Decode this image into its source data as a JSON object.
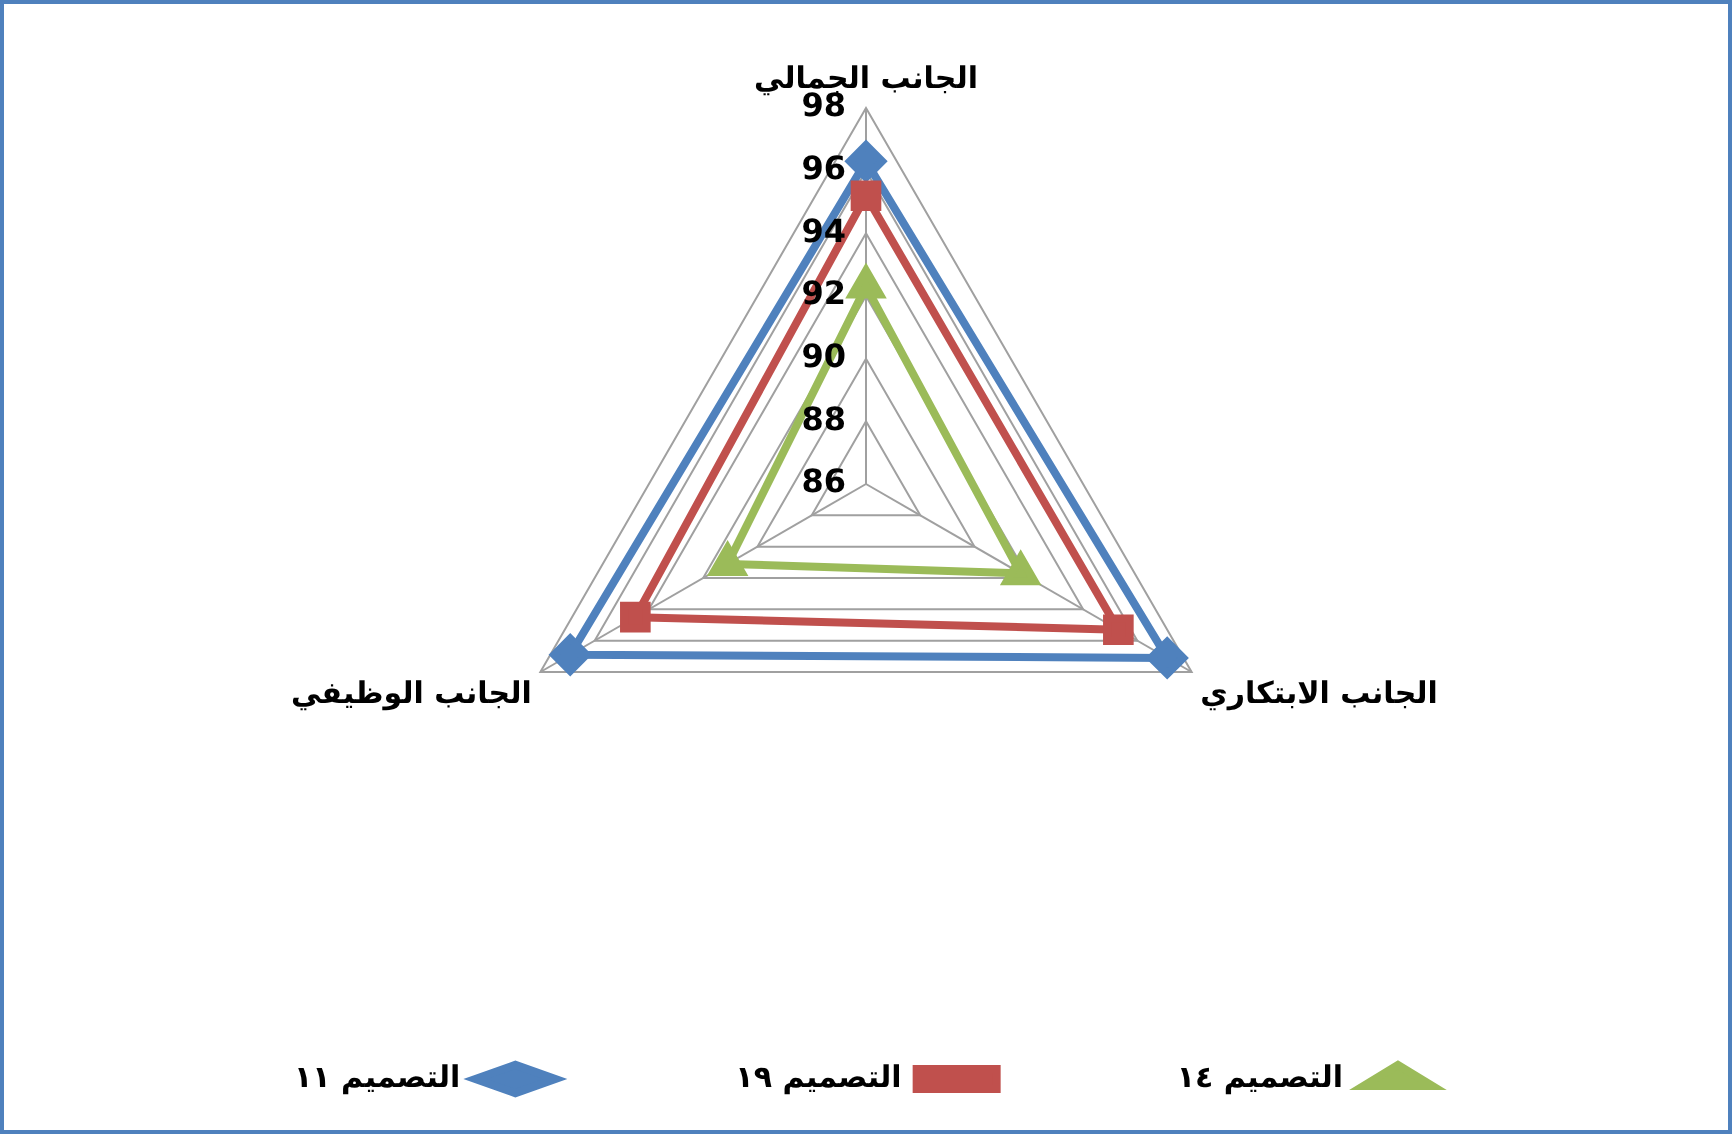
{
  "chart_data": {
    "type": "radar",
    "categories": [
      "الجانب الجمالي",
      "الجانب الابتكاري",
      "الجانب الوظيفي"
    ],
    "series": [
      {
        "name": "التصميم ١٤",
        "color": "#9bbb59",
        "marker": "triangle",
        "values": [
          92.3,
          91.7,
          91.1
        ]
      },
      {
        "name": "التصميم ١٩",
        "color": "#c0504d",
        "marker": "square",
        "values": [
          95.2,
          95.3,
          94.5
        ]
      },
      {
        "name": "التصميم ١١",
        "color": "#4f81bd",
        "marker": "diamond",
        "values": [
          96.3,
          97.1,
          96.9
        ]
      }
    ],
    "ylim": [
      86,
      98
    ],
    "yticks": [
      86,
      88,
      90,
      92,
      94,
      96,
      98
    ],
    "grid": true,
    "legend": "bottom"
  }
}
